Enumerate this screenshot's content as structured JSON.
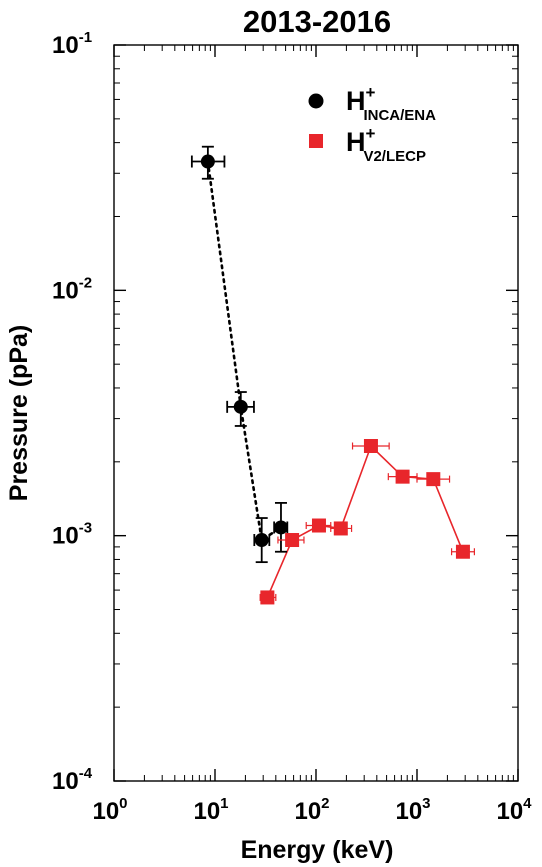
{
  "chart_data": {
    "type": "scatter",
    "title": "2013-2016",
    "xlabel": "Energy (keV)",
    "ylabel": "Pressure (pPa)",
    "xscale": "log",
    "yscale": "log",
    "xlim": [
      1,
      10000
    ],
    "ylim": [
      0.0001,
      0.1
    ],
    "x_ticks": [
      {
        "base": "10",
        "exp": "0",
        "value": 1
      },
      {
        "base": "10",
        "exp": "1",
        "value": 10
      },
      {
        "base": "10",
        "exp": "2",
        "value": 100
      },
      {
        "base": "10",
        "exp": "3",
        "value": 1000
      },
      {
        "base": "10",
        "exp": "4",
        "value": 10000
      }
    ],
    "y_ticks": [
      {
        "base": "10",
        "exp": "-4",
        "value": 0.0001
      },
      {
        "base": "10",
        "exp": "-3",
        "value": 0.001
      },
      {
        "base": "10",
        "exp": "-2",
        "value": 0.01
      },
      {
        "base": "10",
        "exp": "-1",
        "value": 0.1
      }
    ],
    "legend_position": "top-right",
    "series": [
      {
        "legend_base": "H",
        "legend_sup": "+",
        "legend_sub": "INCA/ENA",
        "marker": "circle",
        "color": "#000000",
        "line": "dotted",
        "points": [
          {
            "x": 8.5,
            "y": 0.0335,
            "xlo": 5.9,
            "xhi": 12.4,
            "ylo": 0.0285,
            "yhi": 0.0385
          },
          {
            "x": 18,
            "y": 0.00335,
            "xlo": 13.2,
            "xhi": 24.3,
            "ylo": 0.0028,
            "yhi": 0.00385
          },
          {
            "x": 29,
            "y": 0.00096,
            "xlo": 24.5,
            "xhi": 34.5,
            "ylo": 0.00078,
            "yhi": 0.00118
          },
          {
            "x": 45,
            "y": 0.00108,
            "xlo": 38.5,
            "xhi": 52,
            "ylo": 0.00086,
            "yhi": 0.00136
          }
        ]
      },
      {
        "legend_base": "H",
        "legend_sup": "+",
        "legend_sub": "V2/LECP",
        "marker": "square",
        "color": "#e8262b",
        "line": "solid",
        "points": [
          {
            "x": 33,
            "y": 0.00056,
            "xlo": 28,
            "xhi": 40
          },
          {
            "x": 58,
            "y": 0.00096,
            "xlo": 42,
            "xhi": 76
          },
          {
            "x": 107,
            "y": 0.0011,
            "xlo": 80,
            "xhi": 140
          },
          {
            "x": 176,
            "y": 0.00107,
            "xlo": 140,
            "xhi": 225
          },
          {
            "x": 350,
            "y": 0.00232,
            "xlo": 230,
            "xhi": 530
          },
          {
            "x": 720,
            "y": 0.00174,
            "xlo": 520,
            "xhi": 1000
          },
          {
            "x": 1450,
            "y": 0.0017,
            "xlo": 1000,
            "xhi": 2100
          },
          {
            "x": 2850,
            "y": 0.00086,
            "xlo": 2200,
            "xhi": 3700
          }
        ]
      }
    ]
  }
}
